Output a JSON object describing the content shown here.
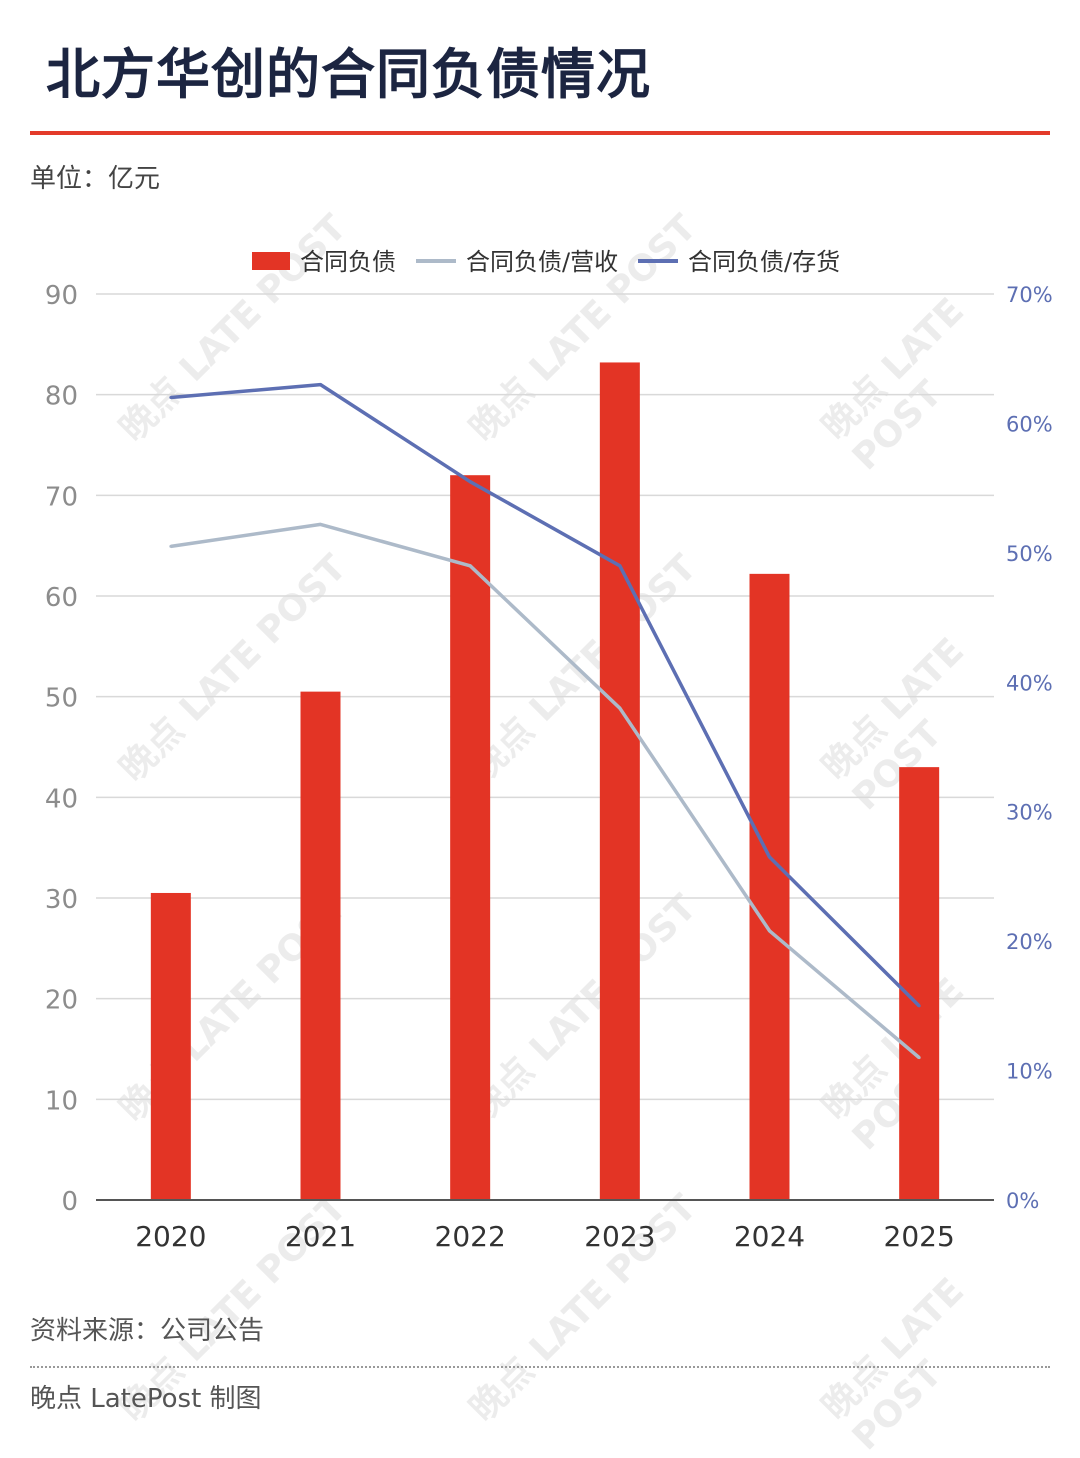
{
  "title": "北方华创的合同负债情况",
  "unit": "单位：亿元",
  "source": "资料来源：公司公告",
  "credit": "晚点 LatePost 制图",
  "watermark": "晚点 LATE POST",
  "colors": {
    "bar": "#e33425",
    "revenue_line": "#adbac9",
    "inventory_line": "#5d6fb3",
    "title": "#1c2541",
    "rule": "#e33a2a"
  },
  "chart_data": {
    "type": "bar",
    "categories": [
      "2020",
      "2021",
      "2022",
      "2023",
      "2024",
      "2025"
    ],
    "series": [
      {
        "name": "合同负债",
        "type": "bar",
        "axis": "left",
        "values": [
          30.5,
          50.5,
          72,
          83.2,
          62.2,
          43
        ]
      },
      {
        "name": "合同负债/营收",
        "type": "line",
        "axis": "right",
        "values": [
          0.505,
          0.522,
          0.49,
          0.38,
          0.208,
          0.11
        ]
      },
      {
        "name": "合同负债/存货",
        "type": "line",
        "axis": "right",
        "values": [
          0.62,
          0.63,
          0.555,
          0.49,
          0.265,
          0.15
        ]
      }
    ],
    "ylim": [
      0,
      90
    ],
    "yticks": [
      "0",
      "10",
      "20",
      "30",
      "40",
      "50",
      "60",
      "70",
      "80",
      "90"
    ],
    "y2lim": [
      0,
      0.7
    ],
    "y2ticks": [
      "0%",
      "10%",
      "20%",
      "30%",
      "40%",
      "50%",
      "60%",
      "70%"
    ],
    "legend_position": "top-center",
    "grid": true
  }
}
